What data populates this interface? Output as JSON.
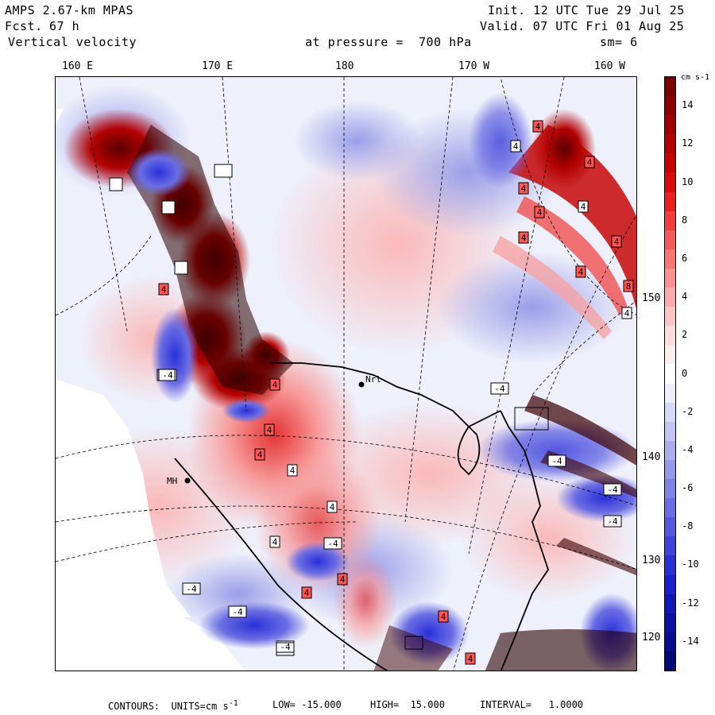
{
  "header": {
    "model": "AMPS 2.67-km MPAS",
    "forecast_label": "Fcst.",
    "forecast_value": "67 h",
    "field": "Vertical velocity",
    "pressure": "at pressure =  700 hPa",
    "init": "Init. 12 UTC Tue 29 Jul 25",
    "valid": "Valid. 07 UTC Fri 01 Aug 25",
    "smoothing": "sm= 6"
  },
  "longitude_labels": [
    "160 E",
    "170 E",
    "180",
    "170 W",
    "160 W"
  ],
  "latitude_labels": [
    "150 W",
    "140 W",
    "130 W",
    "120 W"
  ],
  "map_labels": {
    "station_a": "Nrl",
    "station_b": "MH"
  },
  "colorbar": {
    "unit": "cm s-1",
    "tick_labels": [
      "14",
      "12",
      "10",
      "8",
      "6",
      "4",
      "2",
      "0",
      "-2",
      "-4",
      "-6",
      "-8",
      "-10",
      "-12",
      "-14"
    ],
    "levels": [
      15,
      14,
      13,
      12,
      11,
      10,
      9,
      8,
      7,
      6,
      5,
      4,
      3,
      2,
      1,
      0,
      -1,
      -2,
      -3,
      -4,
      -5,
      -6,
      -7,
      -8,
      -9,
      -10,
      -11,
      -12,
      -13,
      -14,
      -15
    ],
    "colors": [
      "#7a0000",
      "#8c0000",
      "#a00000",
      "#b40000",
      "#c80000",
      "#dc0a0a",
      "#ee1e1e",
      "#f53c3c",
      "#f85a5a",
      "#fa7676",
      "#fb9292",
      "#fcacac",
      "#fdc6c6",
      "#fedcdc",
      "#ffeeee",
      "#ffffff",
      "#eeeefd",
      "#d8d9f8",
      "#c2c4f3",
      "#acaeee",
      "#9698ea",
      "#8083e6",
      "#6a6de3",
      "#5458df",
      "#3e43dc",
      "#2a30d8",
      "#1a20cf",
      "#1018bb",
      "#0a12a4",
      "#060d8e",
      "#030a78"
    ]
  },
  "footer": {
    "contours": "CONTOURS:  UNITS=cm s",
    "unit_exp": "-1",
    "low": "LOW= -15.000",
    "high": "HIGH=  15.000",
    "interval": "INTERVAL=   1.0000"
  },
  "map_annotations": [
    "4",
    "4",
    "4",
    "4",
    "4",
    "4",
    "4",
    "4",
    "4",
    "8",
    "4",
    "-4",
    "-4",
    "-4",
    "4",
    "4",
    "4",
    "4",
    "4",
    "4",
    "4",
    "4",
    "4",
    "4",
    "4",
    "-4",
    "-4",
    "-4",
    "-4",
    "-4",
    "-4"
  ]
}
